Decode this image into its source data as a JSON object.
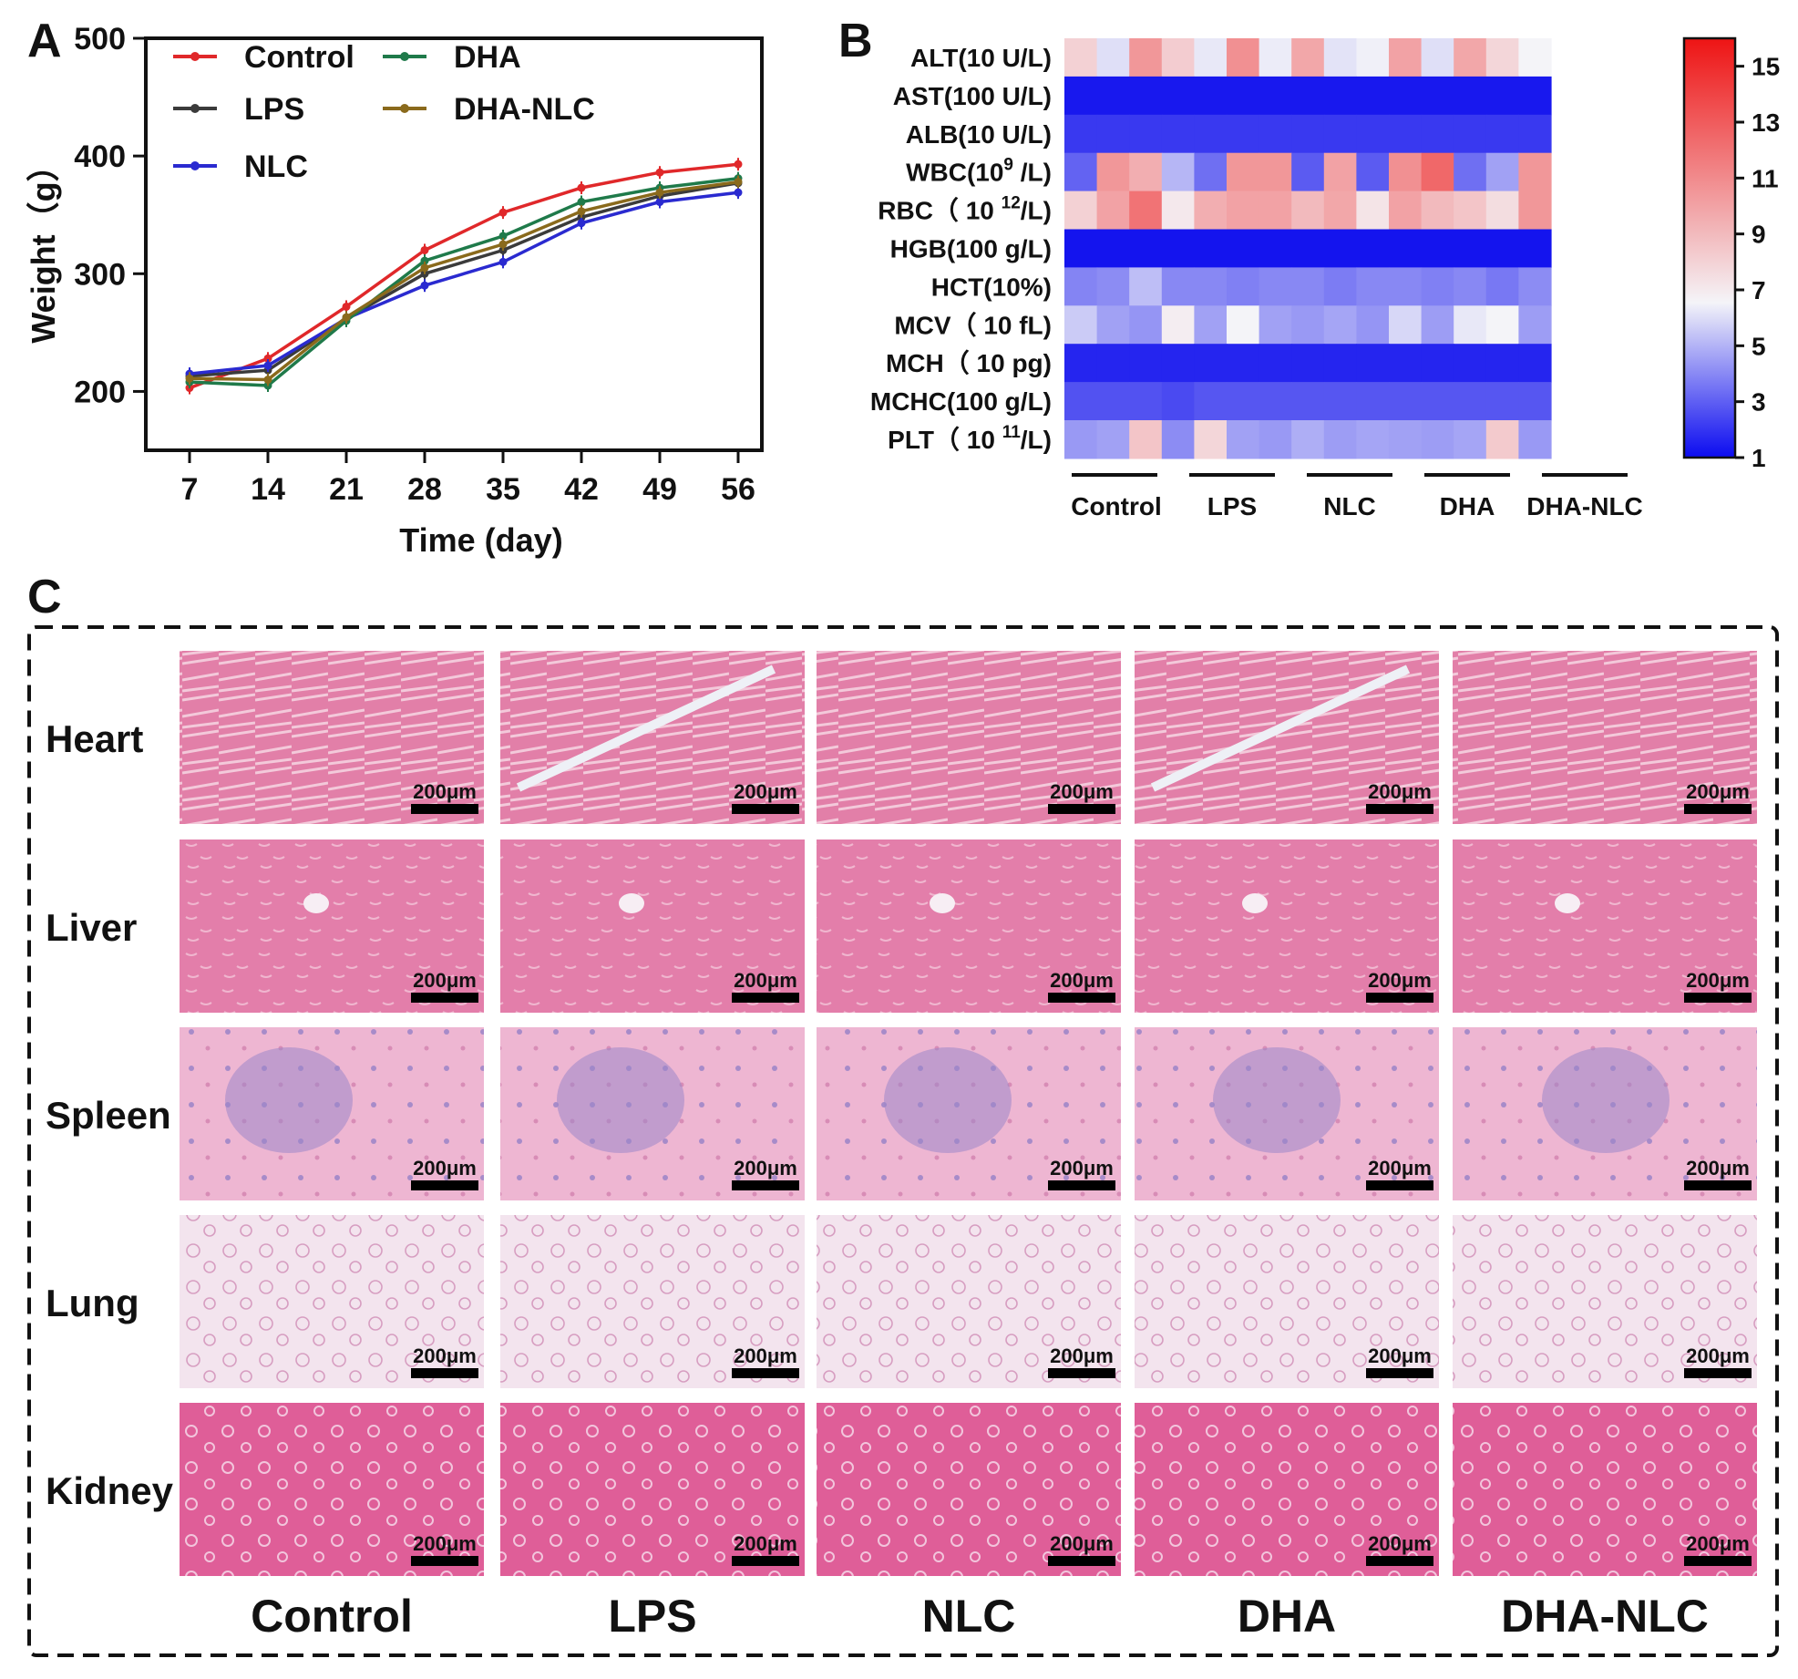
{
  "panels": {
    "a": "A",
    "b": "B",
    "c": "C"
  },
  "colors": {
    "Control": "#e0282a",
    "LPS": "#3b3b3b",
    "NLC": "#2a2ad0",
    "DHA": "#1f7a4a",
    "DHA-NLC": "#8a6a1c"
  },
  "chart_data": [
    {
      "type": "line",
      "panel": "A",
      "title": "",
      "xlabel": "Time (day)",
      "ylabel": "Weight（g）",
      "x": [
        7,
        14,
        21,
        28,
        35,
        42,
        49,
        56
      ],
      "xticks": [
        "7",
        "14",
        "21",
        "28",
        "35",
        "42",
        "49",
        "56"
      ],
      "ylim": [
        150,
        500
      ],
      "yticks": [
        200,
        300,
        400,
        500
      ],
      "legend": "top-left",
      "series": [
        {
          "name": "Control",
          "values": [
            203,
            228,
            272,
            320,
            352,
            373,
            386,
            393
          ]
        },
        {
          "name": "LPS",
          "values": [
            213,
            218,
            262,
            300,
            320,
            348,
            366,
            377
          ]
        },
        {
          "name": "NLC",
          "values": [
            215,
            222,
            262,
            290,
            310,
            343,
            361,
            369
          ]
        },
        {
          "name": "DHA",
          "values": [
            208,
            205,
            260,
            311,
            332,
            361,
            373,
            381
          ]
        },
        {
          "name": "DHA-NLC",
          "values": [
            211,
            210,
            263,
            305,
            325,
            353,
            369,
            378
          ]
        }
      ]
    },
    {
      "type": "heatmap",
      "panel": "B",
      "rows": [
        "ALT(10 U/L)",
        "AST(100 U/L)",
        "ALB(10 U/L)",
        "WBC(10^9 /L)",
        "RBC（ 10 12/L)",
        "HGB(100 g/L)",
        "HCT(10%)",
        "MCV（ 10 fL)",
        "MCH（ 10 pg)",
        "MCHC(100 g/L)",
        "PLT（ 10 11/L)"
      ],
      "row_labels": [
        {
          "main": "ALT(10 U/L)",
          "sup": "",
          "tail": ""
        },
        {
          "main": "AST(100 U/L)",
          "sup": "",
          "tail": ""
        },
        {
          "main": "ALB(10 U/L)",
          "sup": "",
          "tail": ""
        },
        {
          "main": "WBC(10",
          "sup": "9",
          "tail": " /L)"
        },
        {
          "main": "RBC（ 10 ",
          "sup": "12",
          "tail": "/L)"
        },
        {
          "main": "HGB(100 g/L)",
          "sup": "",
          "tail": ""
        },
        {
          "main": "HCT(10%)",
          "sup": "",
          "tail": ""
        },
        {
          "main": "MCV（ 10 fL)",
          "sup": "",
          "tail": ""
        },
        {
          "main": "MCH（ 10 pg)",
          "sup": "",
          "tail": ""
        },
        {
          "main": "MCHC(100 g/L)",
          "sup": "",
          "tail": ""
        },
        {
          "main": "PLT（ 10 ",
          "sup": "11",
          "tail": "/L)"
        }
      ],
      "groups": [
        "Control",
        "LPS",
        "NLC",
        "DHA",
        "DHA-NLC"
      ],
      "replicates_per_group": 3,
      "colorbar": {
        "min": 1,
        "max": 16,
        "ticks": [
          1,
          3,
          5,
          7,
          9,
          11,
          13,
          15
        ],
        "low": "#1010ee",
        "mid": "#f4f4f8",
        "high": "#ee1616"
      },
      "values": [
        [
          8.0,
          6.0,
          10.5,
          8.2,
          6.2,
          10.8,
          6.3,
          9.8,
          6.1,
          6.4,
          10.0,
          6.0,
          9.8,
          7.8,
          6.5
        ],
        [
          1.2,
          1.2,
          1.2,
          1.2,
          1.2,
          1.2,
          1.2,
          1.2,
          1.2,
          1.2,
          1.2,
          1.2,
          1.2,
          1.2,
          1.2
        ],
        [
          2.0,
          2.0,
          2.0,
          2.0,
          2.0,
          2.0,
          2.0,
          2.0,
          2.0,
          2.0,
          2.0,
          2.0,
          2.0,
          2.0,
          2.0
        ],
        [
          3.0,
          10.5,
          9.5,
          5.0,
          3.3,
          10.5,
          10.5,
          2.8,
          10.0,
          2.8,
          10.8,
          12.5,
          3.3,
          4.5,
          10.5
        ],
        [
          8.0,
          10.0,
          12.0,
          7.0,
          9.5,
          10.0,
          10.0,
          9.0,
          9.8,
          7.2,
          10.0,
          9.0,
          8.5,
          7.5,
          10.5
        ],
        [
          1.1,
          1.1,
          1.1,
          1.1,
          1.1,
          1.1,
          1.1,
          1.1,
          1.1,
          1.1,
          1.1,
          1.1,
          1.1,
          1.1,
          1.1
        ],
        [
          3.8,
          4.0,
          5.2,
          3.9,
          3.9,
          3.7,
          3.9,
          3.9,
          3.6,
          3.9,
          3.9,
          3.7,
          3.9,
          3.5,
          4.0
        ],
        [
          5.5,
          4.5,
          4.2,
          6.8,
          4.5,
          6.5,
          4.5,
          4.3,
          4.6,
          4.2,
          5.8,
          4.4,
          6.2,
          6.5,
          4.4
        ],
        [
          1.5,
          1.5,
          1.5,
          1.5,
          1.5,
          1.5,
          1.5,
          1.5,
          1.5,
          1.5,
          1.5,
          1.5,
          1.5,
          1.5,
          1.5
        ],
        [
          2.6,
          2.6,
          2.6,
          2.4,
          2.7,
          2.7,
          2.7,
          2.7,
          2.7,
          2.7,
          2.7,
          2.7,
          2.7,
          2.7,
          2.7
        ],
        [
          4.3,
          4.5,
          8.5,
          4.0,
          7.8,
          4.5,
          4.3,
          4.8,
          4.4,
          4.6,
          4.5,
          4.4,
          4.6,
          8.3,
          4.3
        ]
      ]
    }
  ],
  "histology": {
    "rows": [
      "Heart",
      "Liver",
      "Spleen",
      "Lung",
      "Kidney"
    ],
    "columns": [
      "Control",
      "LPS",
      "NLC",
      "DHA",
      "DHA-NLC"
    ],
    "scale_bar": "200μm",
    "tissue_colors": {
      "Heart": {
        "base": "#e27fa8",
        "accent": "#f3c9da"
      },
      "Liver": {
        "base": "#e37eaa",
        "accent": "#f0b6cf"
      },
      "Spleen": {
        "base": "#eeb6d2",
        "accent": "#a78bc9"
      },
      "Lung": {
        "base": "#f3e4ee",
        "accent": "#d79ec1"
      },
      "Kidney": {
        "base": "#df5e98",
        "accent": "#f2c5dc"
      }
    }
  }
}
